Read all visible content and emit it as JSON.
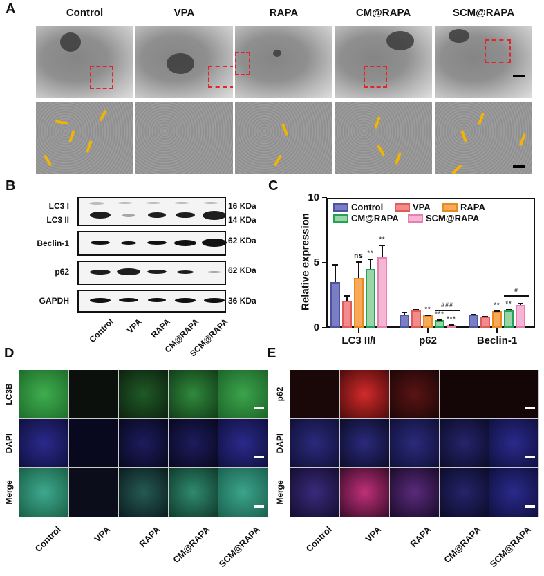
{
  "panels": {
    "A": {
      "letter": "A",
      "columns": [
        "Control",
        "VPA",
        "RAPA",
        "CM@RAPA",
        "SCM@RAPA"
      ]
    },
    "B": {
      "letter": "B",
      "rows": [
        {
          "label": "LC3 I",
          "kda": "16 KDa"
        },
        {
          "label": "LC3 II",
          "kda": "14 KDa"
        },
        {
          "label": "Beclin-1",
          "kda": "62 KDa"
        },
        {
          "label": "p62",
          "kda": "62 KDa"
        },
        {
          "label": "GAPDH",
          "kda": "36 KDa"
        }
      ],
      "lanes": [
        "Control",
        "VPA",
        "RAPA",
        "CM@RAPA",
        "SCM@RAPA"
      ]
    },
    "C": {
      "letter": "C"
    },
    "D": {
      "letter": "D",
      "rows": [
        "LC3B",
        "DAPI",
        "Merge"
      ],
      "columns": [
        "Control",
        "VPA",
        "RAPA",
        "CM@RAPA",
        "SCM@RAPA"
      ]
    },
    "E": {
      "letter": "E",
      "rows": [
        "p62",
        "DAPI",
        "Merge"
      ],
      "columns": [
        "Control",
        "VPA",
        "RAPA",
        "CM@RAPA",
        "SCM@RAPA"
      ]
    }
  },
  "chart_data": {
    "type": "bar",
    "title": "",
    "xlabel": "",
    "ylabel": "Relative expression",
    "ylim": [
      0,
      10
    ],
    "yticks": [
      0,
      5,
      10
    ],
    "grid": false,
    "legend_position": "top-inside",
    "categories": [
      "LC3 II/I",
      "p62",
      "Beclin-1"
    ],
    "series": [
      {
        "name": "Control",
        "color": "#7a7fc4",
        "values": [
          3.5,
          1.0,
          1.0
        ],
        "errors": [
          1.4,
          0.2,
          0.05
        ]
      },
      {
        "name": "VPA",
        "color": "#f28b8b",
        "values": [
          2.1,
          1.35,
          0.85
        ],
        "errors": [
          0.4,
          0.1,
          0.05
        ]
      },
      {
        "name": "RAPA",
        "color": "#f7aa5a",
        "values": [
          3.85,
          0.95,
          1.3
        ],
        "errors": [
          1.25,
          0.05,
          0.05
        ]
      },
      {
        "name": "CM@RAPA",
        "color": "#9bd4a6",
        "values": [
          4.5,
          0.6,
          1.35
        ],
        "errors": [
          0.8,
          0.05,
          0.1
        ]
      },
      {
        "name": "SCM@RAPA",
        "color": "#f4b6d4",
        "values": [
          5.45,
          0.2,
          1.75
        ],
        "errors": [
          0.95,
          0.05,
          0.15
        ]
      }
    ],
    "series_border_colors": [
      "#4d52a3",
      "#e05a5a",
      "#e88a20",
      "#23a35a",
      "#e87fb0"
    ],
    "annotations": [
      {
        "category": "LC3 II/I",
        "series": "RAPA",
        "text": "ns"
      },
      {
        "category": "LC3 II/I",
        "series": "CM@RAPA",
        "text": "**"
      },
      {
        "category": "LC3 II/I",
        "series": "SCM@RAPA",
        "text": "**"
      },
      {
        "category": "p62",
        "series": "RAPA",
        "text": "**"
      },
      {
        "category": "p62",
        "series": "CM@RAPA",
        "text": "***"
      },
      {
        "category": "p62",
        "series": "SCM@RAPA",
        "text": "***"
      },
      {
        "category": "p62",
        "bracket": "CM@RAPA-SCM@RAPA",
        "text": "###"
      },
      {
        "category": "Beclin-1",
        "series": "RAPA",
        "text": "**"
      },
      {
        "category": "Beclin-1",
        "series": "CM@RAPA",
        "text": "**"
      },
      {
        "category": "Beclin-1",
        "series": "SCM@RAPA",
        "text": "***"
      },
      {
        "category": "Beclin-1",
        "bracket": "CM@RAPA-SCM@RAPA",
        "text": "#"
      }
    ]
  }
}
